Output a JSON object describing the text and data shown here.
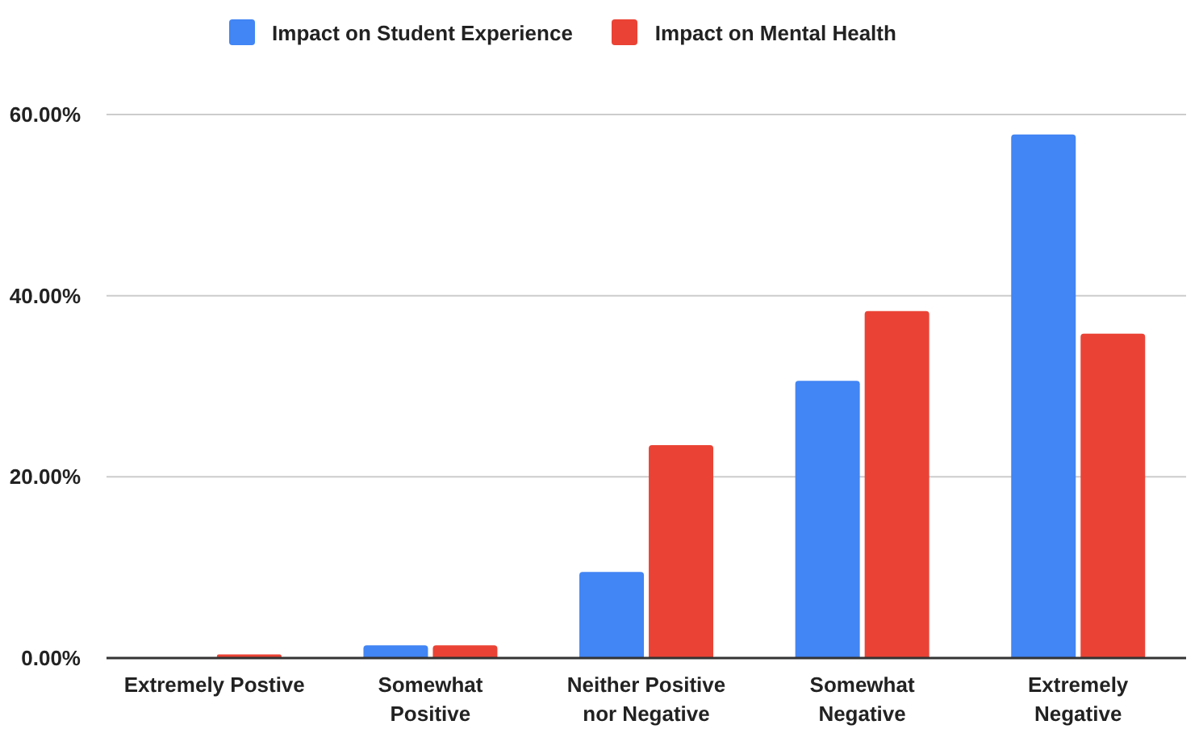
{
  "chart_data": {
    "type": "bar",
    "categories": [
      "Extremely Postive",
      "Somewhat Positive",
      "Neither Positive nor Negative",
      "Somewhat Negative",
      "Extremely Negative"
    ],
    "series": [
      {
        "name": "Impact on Student Experience",
        "color": "#4285f4",
        "values": [
          0,
          1.4,
          9.5,
          30.6,
          57.8
        ]
      },
      {
        "name": "Impact on Mental Health",
        "color": "#ea4335",
        "values": [
          0.4,
          1.4,
          23.5,
          38.3,
          35.8
        ]
      }
    ],
    "ylim": [
      0,
      60
    ],
    "yticks": [
      {
        "value": 0,
        "label": "0.00%"
      },
      {
        "value": 20,
        "label": "20.00%"
      },
      {
        "value": 40,
        "label": "40.00%"
      },
      {
        "value": 60,
        "label": "60.00%"
      }
    ],
    "grid": "y",
    "legend": "top"
  }
}
